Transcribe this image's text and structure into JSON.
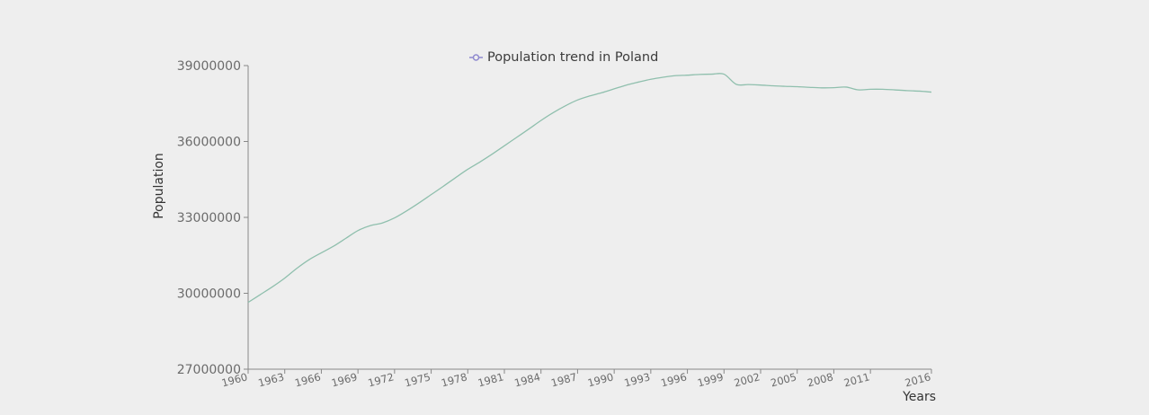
{
  "chart_data": {
    "type": "line",
    "xlabel": "Years",
    "ylabel": "Population",
    "ylim": [
      27000000,
      39000000
    ],
    "xlim": [
      1960,
      2016
    ],
    "yticks": [
      27000000,
      30000000,
      33000000,
      36000000,
      39000000
    ],
    "yticks_labels": [
      "27000000",
      "30000000",
      "33000000",
      "36000000",
      "39000000"
    ],
    "xticks": [
      1960,
      1963,
      1966,
      1969,
      1972,
      1975,
      1978,
      1981,
      1984,
      1987,
      1990,
      1993,
      1996,
      1999,
      2002,
      2005,
      2008,
      2011,
      2016
    ],
    "xticks_labels": [
      "1960",
      "1963",
      "1966",
      "1969",
      "1972",
      "1975",
      "1978",
      "1981",
      "1984",
      "1987",
      "1990",
      "1993",
      "1996",
      "1999",
      "2002",
      "2005",
      "2008",
      "2011",
      "2016"
    ],
    "legend": {
      "position": "top-center"
    },
    "grid": false,
    "series": [
      {
        "name": "Population trend in Poland",
        "color": "#8fbfad",
        "legend_color": "#8f89cf",
        "x": [
          1960,
          1961,
          1962,
          1963,
          1964,
          1965,
          1966,
          1967,
          1968,
          1969,
          1970,
          1971,
          1972,
          1973,
          1974,
          1975,
          1976,
          1977,
          1978,
          1979,
          1980,
          1981,
          1982,
          1983,
          1984,
          1985,
          1986,
          1987,
          1988,
          1989,
          1990,
          1991,
          1992,
          1993,
          1994,
          1995,
          1996,
          1997,
          1998,
          1999,
          2000,
          2001,
          2002,
          2003,
          2004,
          2005,
          2006,
          2007,
          2008,
          2009,
          2010,
          2011,
          2012,
          2013,
          2014,
          2015,
          2016
        ],
        "values": [
          29640000,
          29950000,
          30260000,
          30600000,
          30990000,
          31330000,
          31600000,
          31860000,
          32170000,
          32480000,
          32670000,
          32780000,
          32980000,
          33260000,
          33570000,
          33900000,
          34230000,
          34570000,
          34900000,
          35190000,
          35500000,
          35830000,
          36160000,
          36490000,
          36830000,
          37140000,
          37410000,
          37640000,
          37800000,
          37930000,
          38080000,
          38230000,
          38350000,
          38460000,
          38540000,
          38600000,
          38620000,
          38650000,
          38660000,
          38660000,
          38260000,
          38250000,
          38230000,
          38200000,
          38180000,
          38165000,
          38140000,
          38120000,
          38125000,
          38150000,
          38040000,
          38063000,
          38063000,
          38040000,
          38010000,
          37990000,
          37950000
        ]
      }
    ]
  }
}
